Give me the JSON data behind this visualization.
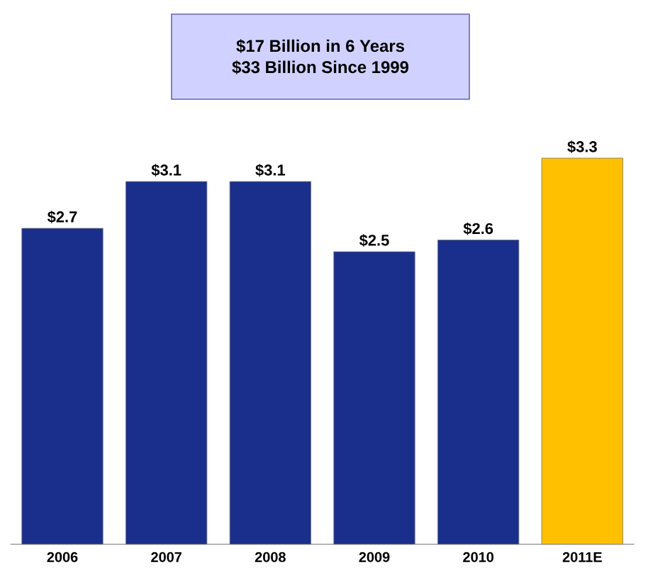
{
  "chart_data": {
    "type": "bar",
    "title": "$17 Billion in 6 Years",
    "subtitle": "$33 Billion Since 1999",
    "categories": [
      "2006",
      "2007",
      "2008",
      "2009",
      "2010",
      "2011E"
    ],
    "values": [
      2.7,
      3.1,
      3.1,
      2.5,
      2.6,
      3.3
    ],
    "value_labels": [
      "$2.7",
      "$3.1",
      "$3.1",
      "$2.5",
      "$2.6",
      "$3.3"
    ],
    "colors": [
      "#1a2f8c",
      "#1a2f8c",
      "#1a2f8c",
      "#1a2f8c",
      "#1a2f8c",
      "#ffc000"
    ]
  }
}
